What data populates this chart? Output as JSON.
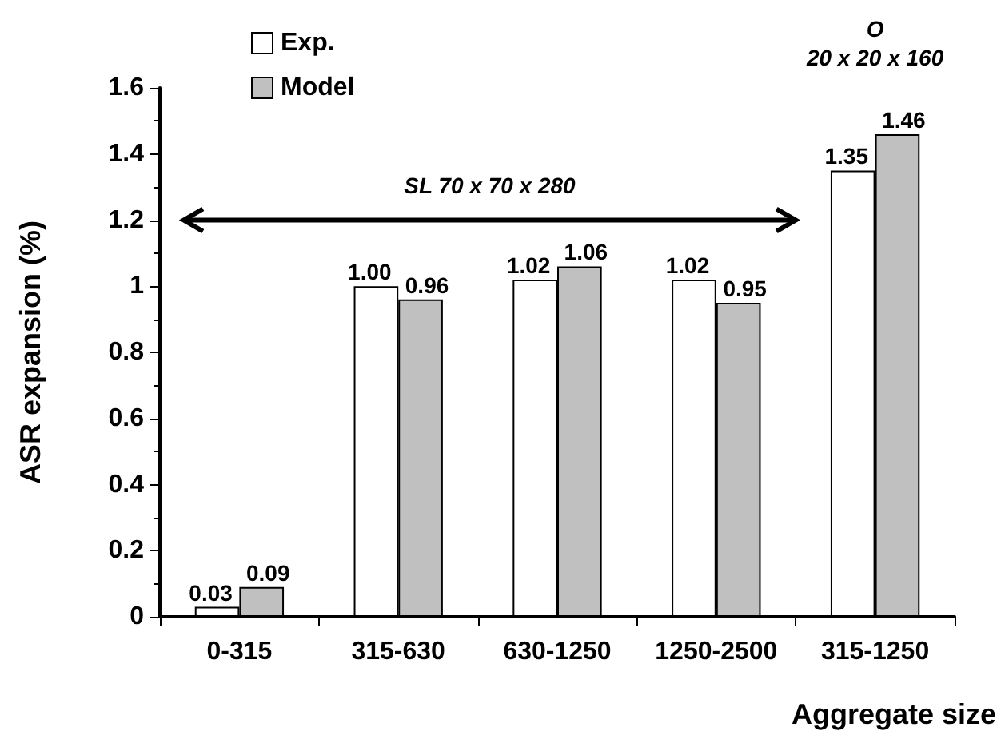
{
  "chart_data": {
    "type": "bar",
    "xlabel": "Aggregate size",
    "ylabel": "ASR expansion (%)",
    "categories": [
      "0-315",
      "315-630",
      "630-1250",
      "1250-2500",
      "315-1250"
    ],
    "series": [
      {
        "name": "Exp.",
        "color": "#ffffff",
        "values": [
          0.03,
          1.0,
          1.02,
          1.02,
          1.35
        ],
        "value_labels": [
          "0.03",
          "1.00",
          "1.02",
          "1.02",
          "1.35"
        ]
      },
      {
        "name": "Model",
        "color": "#c0c0c0",
        "values": [
          0.09,
          0.96,
          1.06,
          0.95,
          1.46
        ],
        "value_labels": [
          "0.09",
          "0.96",
          "1.06",
          "0.95",
          "1.46"
        ]
      }
    ],
    "ylim": [
      0,
      1.6
    ],
    "yticks": [
      {
        "value": 0,
        "label": "0"
      },
      {
        "value": 0.2,
        "label": "0.2"
      },
      {
        "value": 0.4,
        "label": "0.4"
      },
      {
        "value": 0.6,
        "label": "0.6"
      },
      {
        "value": 0.8,
        "label": "0.8"
      },
      {
        "value": 1,
        "label": "1"
      },
      {
        "value": 1.2,
        "label": "1.2"
      },
      {
        "value": 1.4,
        "label": "1.4"
      },
      {
        "value": 1.6,
        "label": "1.6"
      }
    ],
    "legend": "top left",
    "annotations": [
      "SL  70 x 70 x 280",
      "O",
      "20 x 20 x 160"
    ]
  }
}
